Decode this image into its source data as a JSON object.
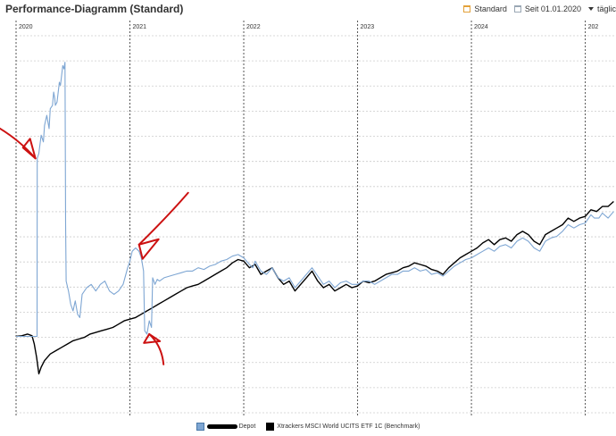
{
  "header": {
    "title": "Performance-Diagramm (Standard)",
    "view_label": "Standard",
    "period_label": "Seit 01.01.2020",
    "interval_label": "täglic"
  },
  "colors": {
    "depot": "#7ea6d3",
    "benchmark": "#000000",
    "annotation": "#cc1111",
    "grid": "#cccccc",
    "year_line": "#555555"
  },
  "chart_data": {
    "type": "line",
    "title": "Performance-Diagramm (Standard)",
    "x_axis": {
      "labels": [
        "2020",
        "2021",
        "2022",
        "2023",
        "2024",
        "202"
      ],
      "range": [
        2020.0,
        2025.27
      ]
    },
    "y_axis": {
      "tick_labels_visible": false,
      "range": [
        0,
        1
      ],
      "gridline_count": 16
    },
    "grid": true,
    "legend_position": "bottom-center",
    "series": [
      {
        "name": "Depot",
        "color": "#7ea6d3",
        "points": [
          [
            2020.0,
            0.163
          ],
          [
            2020.1,
            0.163
          ],
          [
            2020.18,
            0.163
          ],
          [
            2020.184,
            0.163
          ],
          [
            2020.186,
            0.7
          ],
          [
            2020.2,
            0.715
          ],
          [
            2020.22,
            0.77
          ],
          [
            2020.24,
            0.75
          ],
          [
            2020.25,
            0.8
          ],
          [
            2020.27,
            0.83
          ],
          [
            2020.29,
            0.79
          ],
          [
            2020.3,
            0.85
          ],
          [
            2020.32,
            0.86
          ],
          [
            2020.33,
            0.9
          ],
          [
            2020.34,
            0.88
          ],
          [
            2020.345,
            0.86
          ],
          [
            2020.36,
            0.87
          ],
          [
            2020.38,
            0.93
          ],
          [
            2020.39,
            0.92
          ],
          [
            2020.41,
            0.98
          ],
          [
            2020.42,
            0.97
          ],
          [
            2020.43,
            0.99
          ],
          [
            2020.435,
            0.5
          ],
          [
            2020.44,
            0.33
          ],
          [
            2020.46,
            0.3
          ],
          [
            2020.48,
            0.26
          ],
          [
            2020.5,
            0.24
          ],
          [
            2020.52,
            0.27
          ],
          [
            2020.54,
            0.23
          ],
          [
            2020.56,
            0.22
          ],
          [
            2020.58,
            0.29
          ],
          [
            2020.62,
            0.31
          ],
          [
            2020.66,
            0.32
          ],
          [
            2020.7,
            0.3
          ],
          [
            2020.74,
            0.32
          ],
          [
            2020.78,
            0.33
          ],
          [
            2020.82,
            0.3
          ],
          [
            2020.86,
            0.29
          ],
          [
            2020.9,
            0.3
          ],
          [
            2020.94,
            0.32
          ],
          [
            2020.98,
            0.37
          ],
          [
            2021.0,
            0.39
          ],
          [
            2021.02,
            0.42
          ],
          [
            2021.05,
            0.43
          ],
          [
            2021.08,
            0.42
          ],
          [
            2021.1,
            0.4
          ],
          [
            2021.12,
            0.36
          ],
          [
            2021.13,
            0.18
          ],
          [
            2021.15,
            0.17
          ],
          [
            2021.17,
            0.21
          ],
          [
            2021.19,
            0.19
          ],
          [
            2021.2,
            0.34
          ],
          [
            2021.22,
            0.32
          ],
          [
            2021.24,
            0.335
          ],
          [
            2021.26,
            0.33
          ],
          [
            2021.3,
            0.34
          ],
          [
            2021.35,
            0.345
          ],
          [
            2021.4,
            0.35
          ],
          [
            2021.45,
            0.355
          ],
          [
            2021.5,
            0.36
          ],
          [
            2021.55,
            0.36
          ],
          [
            2021.6,
            0.37
          ],
          [
            2021.65,
            0.365
          ],
          [
            2021.7,
            0.375
          ],
          [
            2021.75,
            0.38
          ],
          [
            2021.8,
            0.39
          ],
          [
            2021.85,
            0.395
          ],
          [
            2021.9,
            0.405
          ],
          [
            2021.95,
            0.41
          ],
          [
            2022.0,
            0.4
          ],
          [
            2022.05,
            0.38
          ],
          [
            2022.08,
            0.37
          ],
          [
            2022.1,
            0.39
          ],
          [
            2022.15,
            0.36
          ],
          [
            2022.2,
            0.35
          ],
          [
            2022.25,
            0.37
          ],
          [
            2022.3,
            0.34
          ],
          [
            2022.35,
            0.33
          ],
          [
            2022.4,
            0.34
          ],
          [
            2022.45,
            0.31
          ],
          [
            2022.5,
            0.33
          ],
          [
            2022.55,
            0.35
          ],
          [
            2022.6,
            0.37
          ],
          [
            2022.65,
            0.345
          ],
          [
            2022.7,
            0.32
          ],
          [
            2022.75,
            0.33
          ],
          [
            2022.8,
            0.31
          ],
          [
            2022.85,
            0.325
          ],
          [
            2022.9,
            0.33
          ],
          [
            2022.95,
            0.32
          ],
          [
            2023.0,
            0.32
          ],
          [
            2023.05,
            0.33
          ],
          [
            2023.1,
            0.33
          ],
          [
            2023.15,
            0.32
          ],
          [
            2023.2,
            0.33
          ],
          [
            2023.25,
            0.34
          ],
          [
            2023.3,
            0.35
          ],
          [
            2023.35,
            0.35
          ],
          [
            2023.4,
            0.36
          ],
          [
            2023.45,
            0.36
          ],
          [
            2023.5,
            0.37
          ],
          [
            2023.55,
            0.36
          ],
          [
            2023.6,
            0.365
          ],
          [
            2023.65,
            0.35
          ],
          [
            2023.7,
            0.355
          ],
          [
            2023.75,
            0.345
          ],
          [
            2023.8,
            0.36
          ],
          [
            2023.85,
            0.375
          ],
          [
            2023.9,
            0.385
          ],
          [
            2023.95,
            0.395
          ],
          [
            2024.0,
            0.4
          ],
          [
            2024.05,
            0.41
          ],
          [
            2024.1,
            0.42
          ],
          [
            2024.15,
            0.43
          ],
          [
            2024.2,
            0.42
          ],
          [
            2024.25,
            0.435
          ],
          [
            2024.3,
            0.44
          ],
          [
            2024.35,
            0.43
          ],
          [
            2024.4,
            0.45
          ],
          [
            2024.45,
            0.46
          ],
          [
            2024.5,
            0.45
          ],
          [
            2024.55,
            0.43
          ],
          [
            2024.6,
            0.42
          ],
          [
            2024.65,
            0.45
          ],
          [
            2024.7,
            0.46
          ],
          [
            2024.75,
            0.465
          ],
          [
            2024.8,
            0.48
          ],
          [
            2024.85,
            0.5
          ],
          [
            2024.9,
            0.49
          ],
          [
            2024.95,
            0.5
          ],
          [
            2025.0,
            0.505
          ],
          [
            2025.05,
            0.53
          ],
          [
            2025.08,
            0.52
          ],
          [
            2025.12,
            0.52
          ],
          [
            2025.15,
            0.535
          ],
          [
            2025.2,
            0.52
          ],
          [
            2025.25,
            0.54
          ]
        ]
      },
      {
        "name": "Xtrackers MSCI World UCITS ETF 1C (Benchmark)",
        "color": "#000000",
        "points": [
          [
            2020.0,
            0.163
          ],
          [
            2020.05,
            0.165
          ],
          [
            2020.1,
            0.17
          ],
          [
            2020.14,
            0.165
          ],
          [
            2020.16,
            0.14
          ],
          [
            2020.18,
            0.1
          ],
          [
            2020.2,
            0.05
          ],
          [
            2020.22,
            0.07
          ],
          [
            2020.25,
            0.09
          ],
          [
            2020.3,
            0.11
          ],
          [
            2020.35,
            0.12
          ],
          [
            2020.4,
            0.13
          ],
          [
            2020.45,
            0.14
          ],
          [
            2020.5,
            0.15
          ],
          [
            2020.55,
            0.155
          ],
          [
            2020.6,
            0.16
          ],
          [
            2020.65,
            0.17
          ],
          [
            2020.7,
            0.175
          ],
          [
            2020.75,
            0.18
          ],
          [
            2020.8,
            0.185
          ],
          [
            2020.85,
            0.19
          ],
          [
            2020.9,
            0.2
          ],
          [
            2020.95,
            0.21
          ],
          [
            2021.0,
            0.215
          ],
          [
            2021.05,
            0.22
          ],
          [
            2021.1,
            0.23
          ],
          [
            2021.15,
            0.24
          ],
          [
            2021.2,
            0.25
          ],
          [
            2021.25,
            0.26
          ],
          [
            2021.3,
            0.27
          ],
          [
            2021.35,
            0.28
          ],
          [
            2021.4,
            0.29
          ],
          [
            2021.45,
            0.3
          ],
          [
            2021.5,
            0.31
          ],
          [
            2021.55,
            0.315
          ],
          [
            2021.6,
            0.32
          ],
          [
            2021.65,
            0.33
          ],
          [
            2021.7,
            0.34
          ],
          [
            2021.75,
            0.35
          ],
          [
            2021.8,
            0.36
          ],
          [
            2021.85,
            0.37
          ],
          [
            2021.9,
            0.385
          ],
          [
            2021.95,
            0.395
          ],
          [
            2022.0,
            0.39
          ],
          [
            2022.05,
            0.37
          ],
          [
            2022.1,
            0.38
          ],
          [
            2022.15,
            0.35
          ],
          [
            2022.2,
            0.36
          ],
          [
            2022.25,
            0.37
          ],
          [
            2022.3,
            0.34
          ],
          [
            2022.35,
            0.32
          ],
          [
            2022.4,
            0.33
          ],
          [
            2022.45,
            0.3
          ],
          [
            2022.5,
            0.32
          ],
          [
            2022.55,
            0.34
          ],
          [
            2022.6,
            0.36
          ],
          [
            2022.65,
            0.33
          ],
          [
            2022.7,
            0.31
          ],
          [
            2022.75,
            0.32
          ],
          [
            2022.8,
            0.3
          ],
          [
            2022.85,
            0.31
          ],
          [
            2022.9,
            0.32
          ],
          [
            2022.95,
            0.31
          ],
          [
            2023.0,
            0.315
          ],
          [
            2023.05,
            0.33
          ],
          [
            2023.1,
            0.325
          ],
          [
            2023.15,
            0.33
          ],
          [
            2023.2,
            0.34
          ],
          [
            2023.25,
            0.35
          ],
          [
            2023.3,
            0.355
          ],
          [
            2023.35,
            0.36
          ],
          [
            2023.4,
            0.37
          ],
          [
            2023.45,
            0.375
          ],
          [
            2023.5,
            0.385
          ],
          [
            2023.55,
            0.38
          ],
          [
            2023.6,
            0.375
          ],
          [
            2023.65,
            0.365
          ],
          [
            2023.7,
            0.36
          ],
          [
            2023.75,
            0.35
          ],
          [
            2023.8,
            0.37
          ],
          [
            2023.85,
            0.385
          ],
          [
            2023.9,
            0.4
          ],
          [
            2023.95,
            0.41
          ],
          [
            2024.0,
            0.42
          ],
          [
            2024.05,
            0.43
          ],
          [
            2024.1,
            0.445
          ],
          [
            2024.15,
            0.455
          ],
          [
            2024.2,
            0.44
          ],
          [
            2024.25,
            0.455
          ],
          [
            2024.3,
            0.46
          ],
          [
            2024.35,
            0.45
          ],
          [
            2024.4,
            0.47
          ],
          [
            2024.45,
            0.48
          ],
          [
            2024.5,
            0.47
          ],
          [
            2024.55,
            0.45
          ],
          [
            2024.6,
            0.44
          ],
          [
            2024.65,
            0.47
          ],
          [
            2024.7,
            0.48
          ],
          [
            2024.75,
            0.49
          ],
          [
            2024.8,
            0.5
          ],
          [
            2024.85,
            0.52
          ],
          [
            2024.9,
            0.51
          ],
          [
            2024.95,
            0.52
          ],
          [
            2025.0,
            0.525
          ],
          [
            2025.05,
            0.545
          ],
          [
            2025.1,
            0.54
          ],
          [
            2025.15,
            0.555
          ],
          [
            2025.2,
            0.555
          ],
          [
            2025.25,
            0.57
          ]
        ]
      }
    ],
    "annotations": [
      {
        "type": "arrow",
        "color": "#cc1111",
        "target": [
          2020.17,
          0.7
        ]
      },
      {
        "type": "arrow",
        "color": "#cc1111",
        "target": [
          2021.08,
          0.44
        ]
      },
      {
        "type": "arrow",
        "color": "#cc1111",
        "target": [
          2021.17,
          0.17
        ]
      }
    ]
  },
  "legend": {
    "depot_label": "Depot",
    "benchmark_label": "Xtrackers MSCI World UCITS ETF 1C (Benchmark)"
  }
}
